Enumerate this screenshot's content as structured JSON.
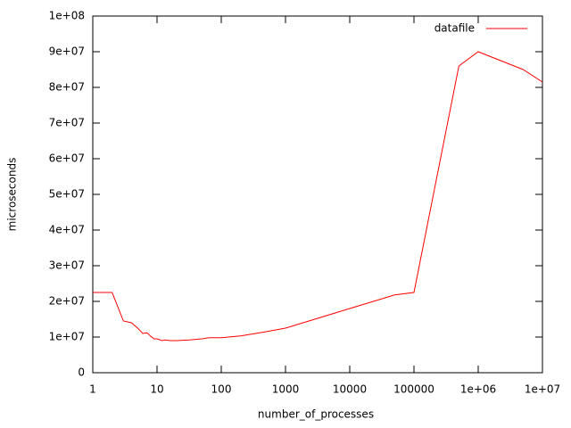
{
  "chart_data": {
    "type": "line",
    "x_label": "number_of_processes",
    "y_label": "microseconds",
    "x_log": true,
    "legend_position": "top-right",
    "x": [
      1,
      2,
      3,
      4,
      5,
      6,
      7,
      8,
      9,
      10,
      12,
      13,
      16,
      20,
      32,
      50,
      64,
      100,
      128,
      200,
      500,
      1000,
      10000,
      50000,
      100000,
      500000,
      1000000,
      5000000,
      10000000
    ],
    "series": [
      {
        "name": "datafile",
        "color": "#ff0000",
        "values": [
          22500000,
          22500000,
          14500000,
          14000000,
          12500000,
          11000000,
          11200000,
          10200000,
          9500000,
          9500000,
          9000000,
          9200000,
          9000000,
          9000000,
          9200000,
          9500000,
          9800000,
          9800000,
          10000000,
          10300000,
          11500000,
          12500000,
          18000000,
          21800000,
          22500000,
          86000000,
          90000000,
          85000000,
          81500000
        ]
      }
    ],
    "xlim": [
      1,
      10000000
    ],
    "xticks": [
      1,
      10,
      100,
      1000,
      10000,
      100000,
      {
        "value": 1000000,
        "label": "1e+06"
      },
      {
        "value": 10000000,
        "label": "1e+07"
      }
    ],
    "ylim": [
      0,
      100000000
    ],
    "yticks": [
      0,
      {
        "value": 10000000,
        "label": "1e+07"
      },
      {
        "value": 20000000,
        "label": "2e+07"
      },
      {
        "value": 30000000,
        "label": "3e+07"
      },
      {
        "value": 40000000,
        "label": "4e+07"
      },
      {
        "value": 50000000,
        "label": "5e+07"
      },
      {
        "value": 60000000,
        "label": "6e+07"
      },
      {
        "value": 70000000,
        "label": "7e+07"
      },
      {
        "value": 80000000,
        "label": "8e+07"
      },
      {
        "value": 90000000,
        "label": "9e+07"
      },
      {
        "value": 100000000,
        "label": "1e+08"
      }
    ]
  }
}
